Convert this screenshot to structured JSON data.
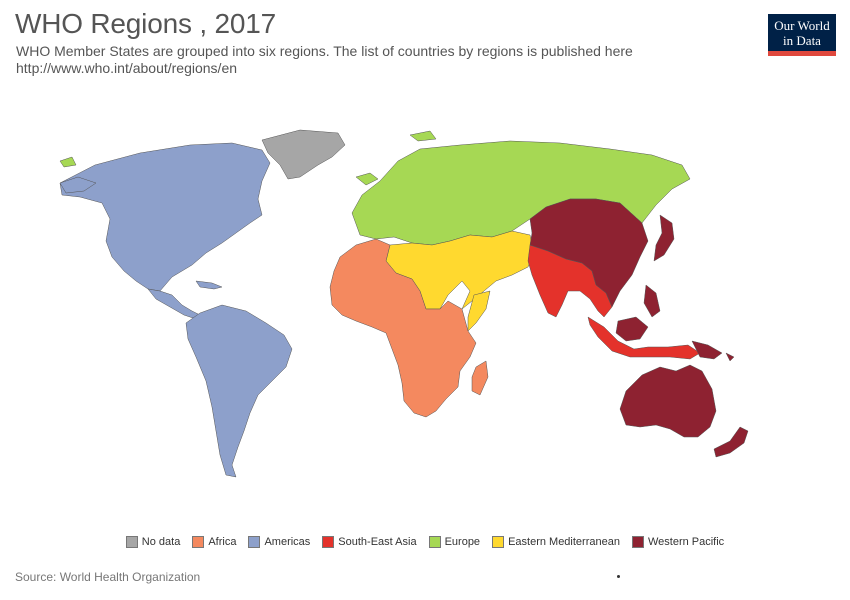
{
  "title": "WHO Regions , 2017",
  "subtitle_line1": "WHO Member States are grouped into six regions. The list of countries by regions is published here",
  "subtitle_line2": "http://www.who.int/about/regions/en",
  "logo": {
    "line1": "Our World",
    "line2": "in Data"
  },
  "source": "Source: World Health Organization",
  "legend": [
    {
      "label": "No data",
      "color": "#a6a6a6"
    },
    {
      "label": "Africa",
      "color": "#f4895f"
    },
    {
      "label": "Americas",
      "color": "#8da0cb"
    },
    {
      "label": "South-East Asia",
      "color": "#e4322b"
    },
    {
      "label": "Europe",
      "color": "#a6d854"
    },
    {
      "label": "Eastern Mediterranean",
      "color": "#ffd92f"
    },
    {
      "label": "Western Pacific",
      "color": "#8e2231"
    }
  ]
}
